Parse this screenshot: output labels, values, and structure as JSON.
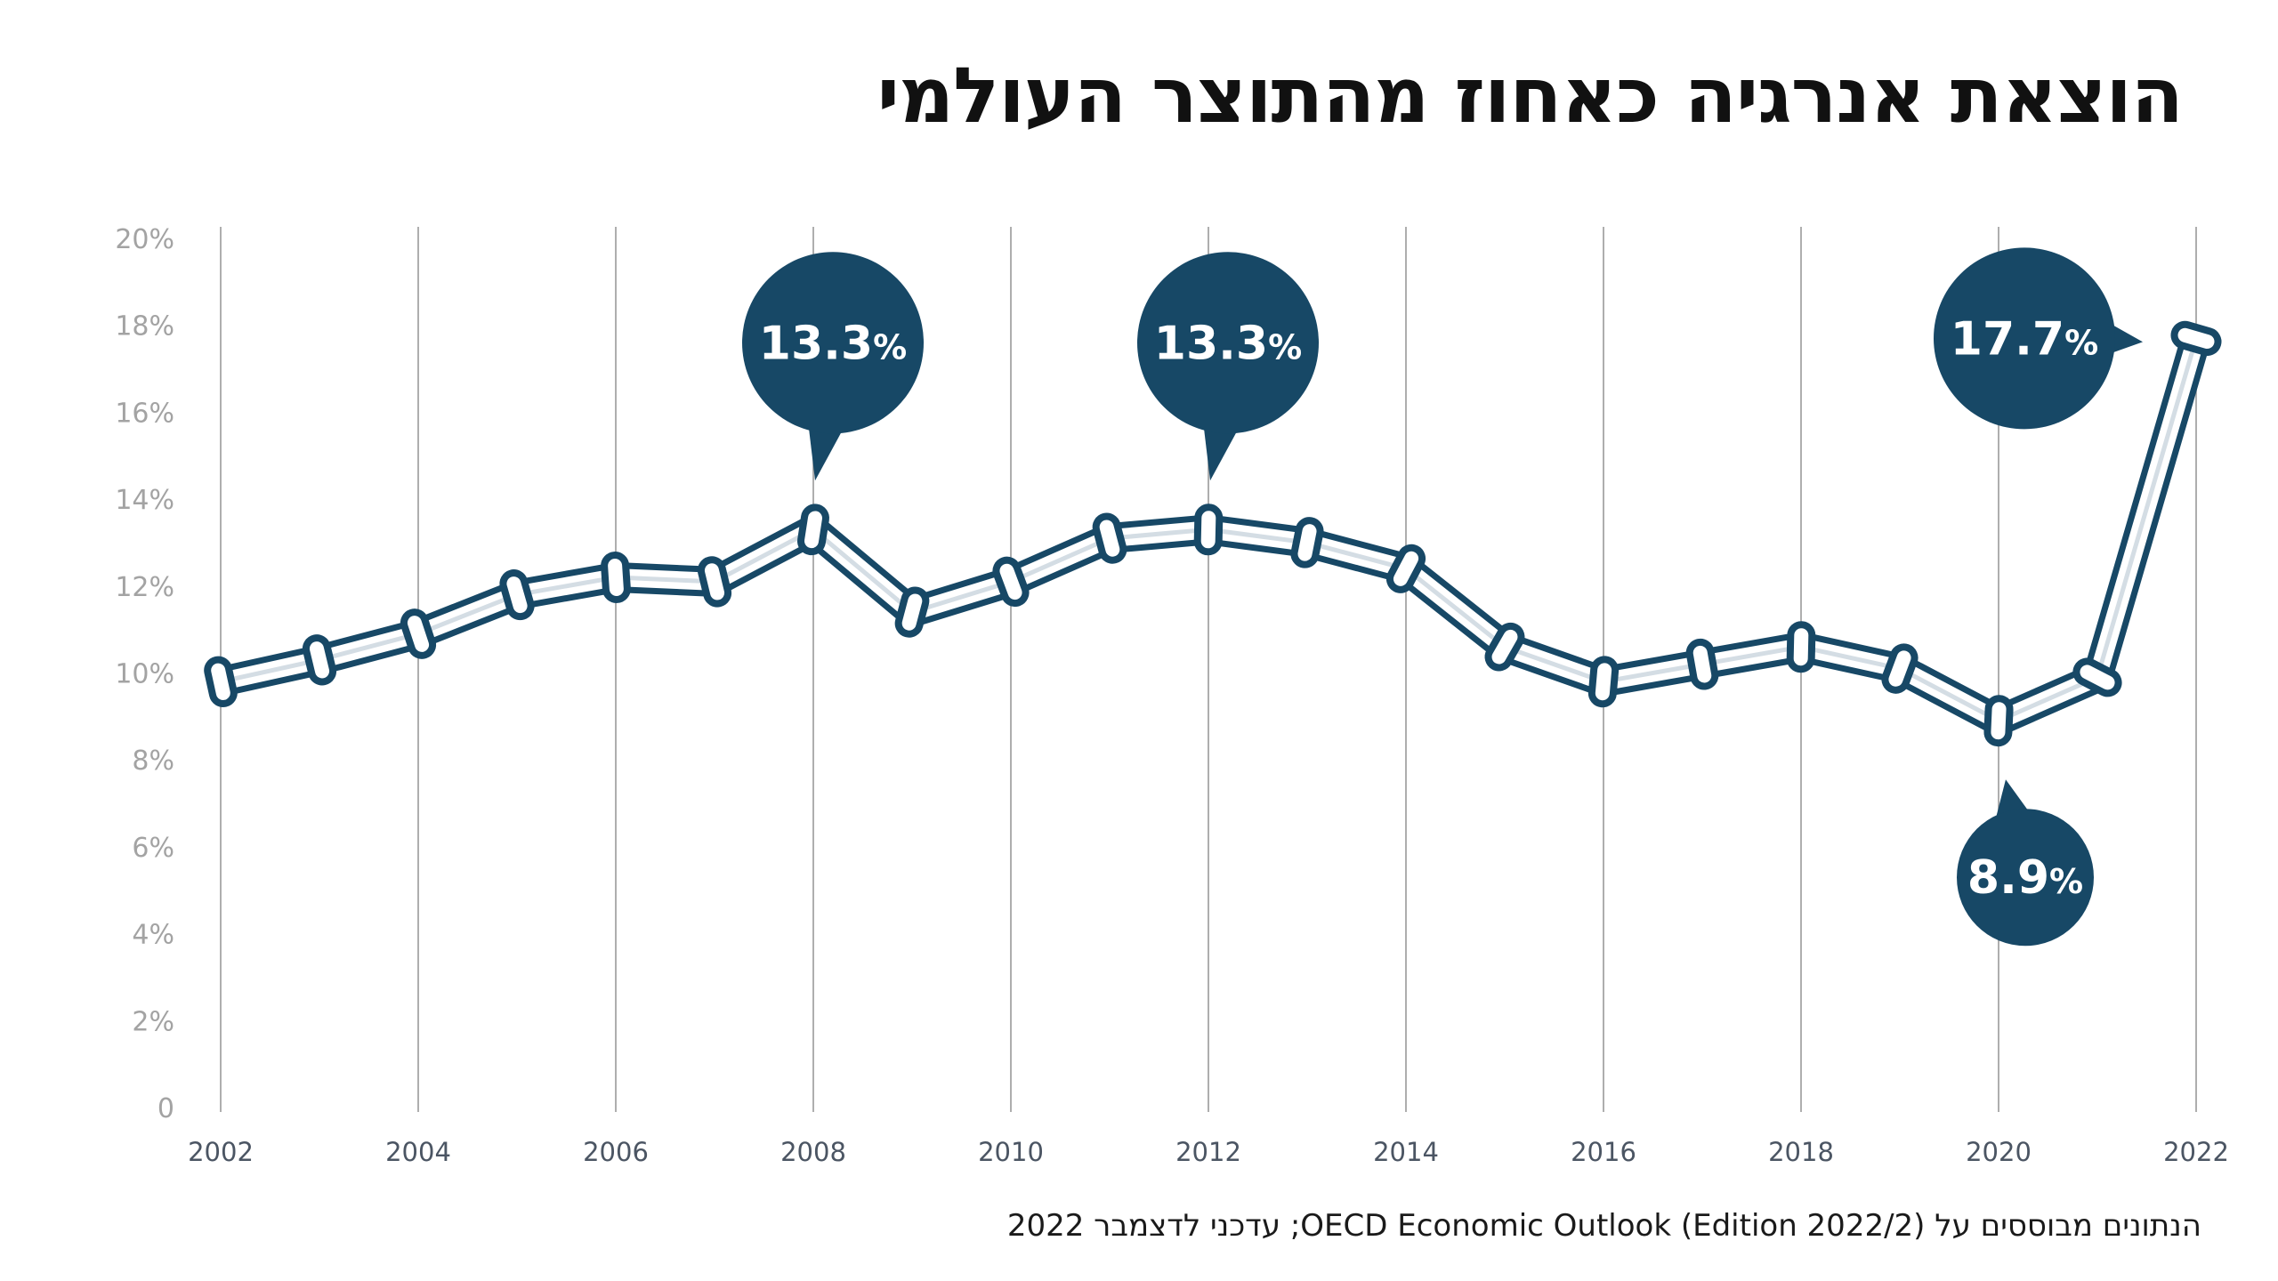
{
  "title": "הוצאת אנרגיה כאחוז מהתוצר העולמי",
  "source_note": "הנתונים מבוססים על OECD Economic Outlook (Edition 2022/2); עדכני לדצמבר 2022",
  "colors": {
    "line_dark": "#174866",
    "line_light": "#d4dde4",
    "callout_fill": "#174866",
    "gridline": "#999999",
    "title": "#111111"
  },
  "chart_data": {
    "type": "line",
    "title": "הוצאת אנרגיה כאחוז מהתוצר העולמי",
    "xlabel": "",
    "ylabel": "",
    "x": [
      2002,
      2003,
      2004,
      2005,
      2006,
      2007,
      2008,
      2009,
      2010,
      2011,
      2012,
      2013,
      2014,
      2015,
      2016,
      2017,
      2018,
      2019,
      2020,
      2021,
      2022
    ],
    "values": [
      9.8,
      10.3,
      10.9,
      11.8,
      12.2,
      12.1,
      13.3,
      11.4,
      12.1,
      13.1,
      13.3,
      13.0,
      12.4,
      10.6,
      9.8,
      10.2,
      10.6,
      10.1,
      8.9,
      9.9,
      17.7
    ],
    "xticks": [
      "2002",
      "2004",
      "2006",
      "2008",
      "2010",
      "2012",
      "2014",
      "2016",
      "2018",
      "2020",
      "2022"
    ],
    "yticks": [
      "0",
      "2%",
      "4%",
      "6%",
      "8%",
      "10%",
      "12%",
      "14%",
      "16%",
      "18%",
      "20%"
    ],
    "ylim": [
      0,
      20
    ],
    "grid": "vertical",
    "annotations": [
      {
        "x": 2008,
        "value": 13.3,
        "number": "13.3",
        "unit": "%",
        "position": "above"
      },
      {
        "x": 2012,
        "value": 13.3,
        "number": "13.3",
        "unit": "%",
        "position": "above"
      },
      {
        "x": 2022,
        "value": 17.7,
        "number": "17.7",
        "unit": "%",
        "position": "left"
      },
      {
        "x": 2020,
        "value": 8.9,
        "number": "8.9",
        "unit": "%",
        "position": "below"
      }
    ]
  }
}
